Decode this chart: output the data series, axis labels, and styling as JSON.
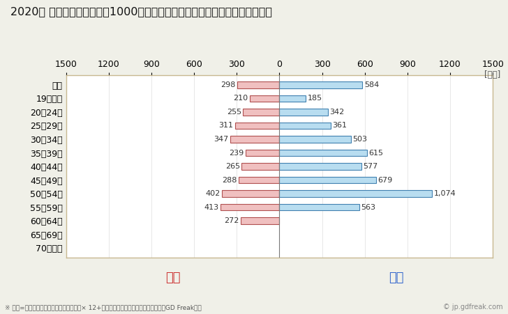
{
  "title": "2020年 民間企業（従業者数1000人以上）フルタイム労働者の男女別平均年収",
  "ylabel_unit": "[万円]",
  "categories": [
    "全体",
    "19歳以下",
    "20～24歳",
    "25～29歳",
    "30～34歳",
    "35～39歳",
    "40～44歳",
    "45～49歳",
    "50～54歳",
    "55～59歳",
    "60～64歳",
    "65～69歳",
    "70歳以上"
  ],
  "female_values": [
    298,
    210,
    255,
    311,
    347,
    239,
    265,
    288,
    402,
    413,
    272,
    0,
    0
  ],
  "male_values": [
    584,
    185,
    342,
    361,
    503,
    615,
    577,
    679,
    1074,
    563,
    0,
    0,
    0
  ],
  "female_color": "#f0c0c0",
  "male_color": "#b8ddf0",
  "female_edge_color": "#b05050",
  "male_edge_color": "#4080b0",
  "female_label": "女性",
  "male_label": "男性",
  "female_label_color": "#cc3333",
  "male_label_color": "#3366cc",
  "xlim": 1500,
  "background_color": "#f0f0e8",
  "plot_background": "#ffffff",
  "footnote": "※ 年収=「きまって支給する現金給与額」× 12+「年間賞与その他特別給与額」としてGD Freak推計",
  "watermark": "© jp.gdfreak.com",
  "title_fontsize": 11.5,
  "bar_label_fontsize": 8,
  "axis_fontsize": 9,
  "bar_height": 0.5
}
